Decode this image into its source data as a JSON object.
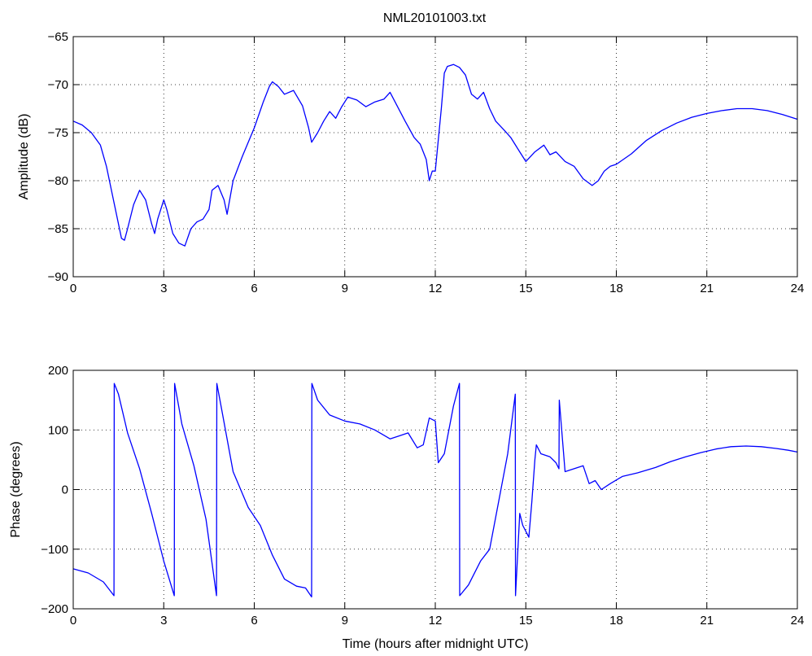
{
  "figure": {
    "title": "NML20101003.txt"
  },
  "chart_data": [
    {
      "type": "line",
      "title": "NML20101003.txt",
      "xlabel": "",
      "ylabel": "Amplitude (dB)",
      "xlim": [
        0,
        24
      ],
      "ylim": [
        -90,
        -65
      ],
      "xticks": [
        0,
        3,
        6,
        9,
        12,
        15,
        18,
        21,
        24
      ],
      "yticks": [
        -90,
        -85,
        -80,
        -75,
        -70,
        -65
      ],
      "grid": true,
      "color": "#0000ff",
      "series": [
        {
          "x": [
            0,
            0.3,
            0.6,
            0.9,
            1.1,
            1.3,
            1.5,
            1.6,
            1.7,
            1.8,
            2.0,
            2.2,
            2.4,
            2.6,
            2.7,
            2.8,
            3.0,
            3.1,
            3.3,
            3.5,
            3.7,
            3.9,
            4.1,
            4.3,
            4.5,
            4.6,
            4.8,
            5.0,
            5.1,
            5.3,
            5.6,
            6.0,
            6.3,
            6.5,
            6.6,
            6.8,
            7.0,
            7.3,
            7.6,
            7.8,
            7.9,
            8.1,
            8.3,
            8.5,
            8.7,
            8.9,
            9.1,
            9.4,
            9.7,
            10.0,
            10.3,
            10.5,
            10.7,
            11.0,
            11.3,
            11.5,
            11.7,
            11.8,
            11.9,
            12.0,
            12.2,
            12.3,
            12.4,
            12.6,
            12.8,
            13.0,
            13.2,
            13.4,
            13.6,
            13.8,
            14.0,
            14.3,
            14.5,
            14.8,
            15.0,
            15.3,
            15.6,
            15.8,
            16.0,
            16.3,
            16.6,
            16.9,
            17.2,
            17.4,
            17.6,
            17.8,
            18.0,
            18.5,
            19.0,
            19.5,
            20.0,
            20.5,
            21.0,
            21.5,
            22.0,
            22.5,
            23.0,
            23.5,
            24.0
          ],
          "y": [
            -73.8,
            -74.2,
            -75.0,
            -76.3,
            -78.5,
            -81.5,
            -84.5,
            -86.0,
            -86.2,
            -85.0,
            -82.5,
            -81.0,
            -82.0,
            -84.5,
            -85.5,
            -84.0,
            -82.0,
            -83.0,
            -85.5,
            -86.5,
            -86.8,
            -85.0,
            -84.3,
            -84.0,
            -83.0,
            -81.0,
            -80.5,
            -82.0,
            -83.5,
            -80.0,
            -77.5,
            -74.5,
            -71.8,
            -70.2,
            -69.7,
            -70.2,
            -71.0,
            -70.6,
            -72.2,
            -74.5,
            -76.0,
            -75.0,
            -73.8,
            -72.8,
            -73.5,
            -72.3,
            -71.3,
            -71.6,
            -72.3,
            -71.8,
            -71.5,
            -70.8,
            -72.0,
            -73.8,
            -75.5,
            -76.2,
            -77.8,
            -80.0,
            -79.0,
            -79.0,
            -72.5,
            -68.8,
            -68.1,
            -67.9,
            -68.2,
            -69.0,
            -71.0,
            -71.5,
            -70.8,
            -72.5,
            -73.8,
            -74.8,
            -75.5,
            -77.0,
            -78.0,
            -77.0,
            -76.3,
            -77.3,
            -77.0,
            -78.0,
            -78.5,
            -79.8,
            -80.5,
            -80.0,
            -79.0,
            -78.5,
            -78.3,
            -77.2,
            -75.8,
            -74.8,
            -74.0,
            -73.4,
            -73.0,
            -72.7,
            -72.5,
            -72.5,
            -72.7,
            -73.1,
            -73.6
          ]
        }
      ]
    },
    {
      "type": "line",
      "title": "",
      "xlabel": "Time (hours after midnight UTC)",
      "ylabel": "Phase (degrees)",
      "xlim": [
        0,
        24
      ],
      "ylim": [
        -200,
        200
      ],
      "xticks": [
        0,
        3,
        6,
        9,
        12,
        15,
        18,
        21,
        24
      ],
      "yticks": [
        -200,
        -100,
        0,
        100,
        200
      ],
      "grid": true,
      "color": "#0000ff",
      "series": [
        {
          "x": [
            0,
            0.5,
            1.0,
            1.35,
            1.36,
            1.5,
            1.8,
            2.2,
            2.6,
            3.0,
            3.35,
            3.36,
            3.6,
            4.0,
            4.4,
            4.75,
            4.76,
            4.9,
            5.3,
            5.8,
            6.2,
            6.6,
            7.0,
            7.4,
            7.7,
            7.9,
            7.91,
            8.1,
            8.5,
            9.0,
            9.5,
            10.0,
            10.5,
            10.8,
            11.1,
            11.4,
            11.6,
            11.8,
            12.0,
            12.1,
            12.3,
            12.6,
            12.8,
            12.81,
            13.1,
            13.5,
            13.8,
            14.1,
            14.4,
            14.65,
            14.66,
            14.8,
            14.9,
            15.1,
            15.2,
            15.3,
            15.35,
            15.5,
            15.8,
            16.0,
            16.1,
            16.11,
            16.3,
            16.6,
            16.9,
            17.1,
            17.3,
            17.5,
            17.8,
            18.2,
            18.7,
            19.3,
            19.8,
            20.3,
            20.8,
            21.3,
            21.8,
            22.3,
            22.8,
            23.3,
            23.7,
            24.0
          ],
          "y": [
            -133,
            -140,
            -155,
            -178,
            178,
            160,
            95,
            35,
            -40,
            -120,
            -178,
            178,
            110,
            40,
            -50,
            -178,
            178,
            140,
            30,
            -30,
            -60,
            -110,
            -150,
            -162,
            -165,
            -180,
            178,
            150,
            125,
            115,
            110,
            100,
            85,
            90,
            95,
            70,
            75,
            120,
            115,
            45,
            60,
            140,
            178,
            -178,
            -160,
            -120,
            -100,
            -20,
            60,
            160,
            -178,
            -40,
            -60,
            -80,
            -20,
            50,
            75,
            60,
            55,
            45,
            35,
            150,
            30,
            35,
            40,
            10,
            15,
            0,
            10,
            22,
            28,
            37,
            47,
            55,
            62,
            68,
            72,
            73,
            72,
            69,
            66,
            63
          ]
        }
      ]
    }
  ]
}
